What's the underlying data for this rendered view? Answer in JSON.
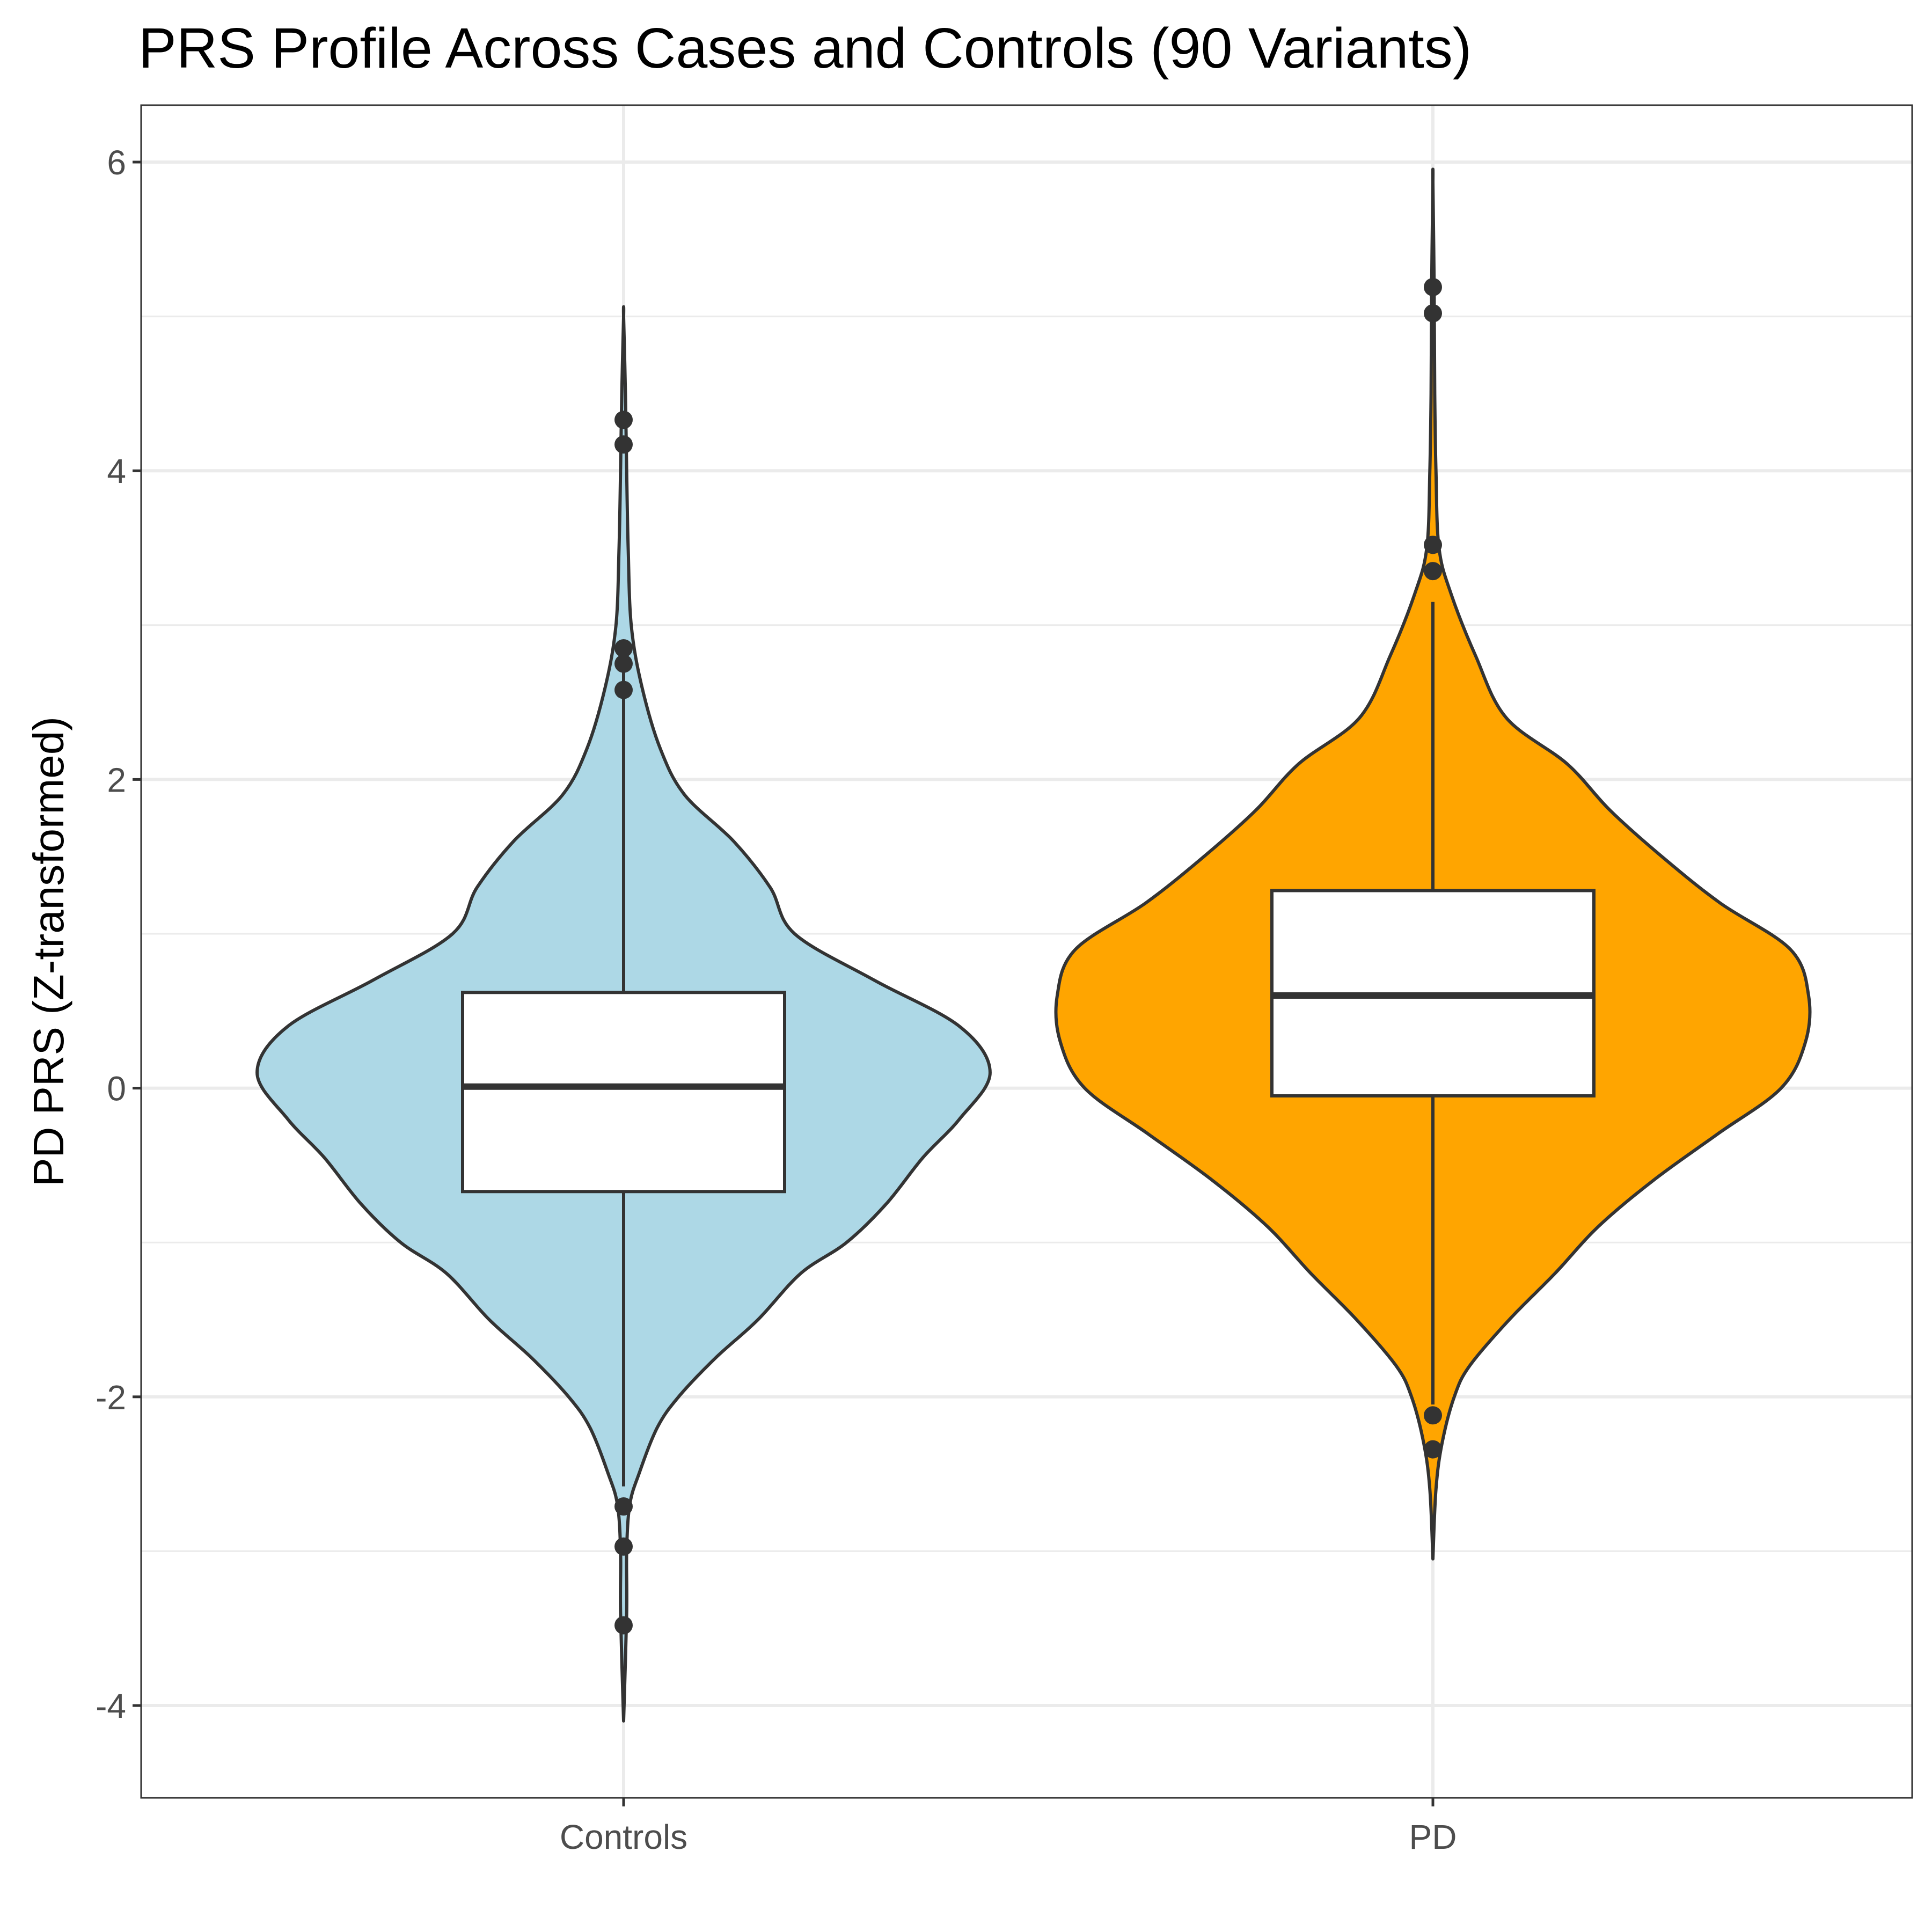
{
  "chart_data": {
    "type": "violin",
    "title": "PRS Profile Across Cases and Controls (90 Variants)",
    "xlabel": "",
    "ylabel": "PD PRS (Z-transformed)",
    "categories": [
      "Controls",
      "PD"
    ],
    "ylim": [
      -4.6,
      6.4
    ],
    "yticks": [
      -4,
      -2,
      0,
      2,
      4,
      6
    ],
    "ytick_labels": [
      "-4",
      "-2",
      "0",
      "2",
      "4",
      "6"
    ],
    "grid": true,
    "colors": {
      "Controls": "#add8e6",
      "PD": "#ffa500",
      "outline": "#333333",
      "box_fill": "#ffffff",
      "grid": "#ebebeb"
    },
    "violins": [
      {
        "group": "Controls",
        "min": -4.1,
        "max": 5.0,
        "density_profile": [
          [
            -4.1,
            0.0
          ],
          [
            -3.4,
            0.01
          ],
          [
            -3.0,
            0.01
          ],
          [
            -2.7,
            0.02
          ],
          [
            -2.5,
            0.05
          ],
          [
            -2.2,
            0.11
          ],
          [
            -2.0,
            0.18
          ],
          [
            -1.75,
            0.3
          ],
          [
            -1.5,
            0.44
          ],
          [
            -1.2,
            0.58
          ],
          [
            -1.0,
            0.73
          ],
          [
            -0.75,
            0.86
          ],
          [
            -0.45,
            0.98
          ],
          [
            -0.2,
            1.1
          ],
          [
            0.1,
            1.2
          ],
          [
            0.4,
            1.1
          ],
          [
            0.7,
            0.82
          ],
          [
            1.0,
            0.56
          ],
          [
            1.3,
            0.48
          ],
          [
            1.6,
            0.36
          ],
          [
            1.9,
            0.2
          ],
          [
            2.2,
            0.12
          ],
          [
            2.6,
            0.06
          ],
          [
            3.0,
            0.025
          ],
          [
            3.5,
            0.015
          ],
          [
            4.0,
            0.01
          ],
          [
            4.5,
            0.006
          ],
          [
            5.0,
            0.0
          ]
        ],
        "box": {
          "q1": -0.67,
          "median": 0.01,
          "q3": 0.62,
          "whisker_low": -2.58,
          "whisker_high": 2.75
        },
        "outliers": [
          -3.48,
          -2.97,
          -2.71,
          2.58,
          2.75,
          2.85,
          4.17,
          4.33
        ]
      },
      {
        "group": "PD",
        "min": -3.05,
        "max": 5.87,
        "density_profile": [
          [
            -3.05,
            0.0
          ],
          [
            -2.6,
            0.01
          ],
          [
            -2.3,
            0.03
          ],
          [
            -2.0,
            0.07
          ],
          [
            -1.8,
            0.12
          ],
          [
            -1.5,
            0.25
          ],
          [
            -1.2,
            0.4
          ],
          [
            -0.9,
            0.54
          ],
          [
            -0.6,
            0.72
          ],
          [
            -0.3,
            0.93
          ],
          [
            0.0,
            1.14
          ],
          [
            0.3,
            1.22
          ],
          [
            0.6,
            1.23
          ],
          [
            0.9,
            1.17
          ],
          [
            1.2,
            0.94
          ],
          [
            1.5,
            0.75
          ],
          [
            1.8,
            0.58
          ],
          [
            2.1,
            0.44
          ],
          [
            2.4,
            0.24
          ],
          [
            2.8,
            0.14
          ],
          [
            3.2,
            0.06
          ],
          [
            3.5,
            0.02
          ],
          [
            4.0,
            0.01
          ],
          [
            4.5,
            0.006
          ],
          [
            5.2,
            0.004
          ],
          [
            5.87,
            0.0
          ]
        ],
        "box": {
          "q1": -0.05,
          "median": 0.6,
          "q3": 1.28,
          "whisker_low": -2.05,
          "whisker_high": 3.15
        },
        "outliers": [
          -2.34,
          -2.12,
          3.35,
          3.52,
          5.02,
          5.19
        ]
      }
    ]
  }
}
